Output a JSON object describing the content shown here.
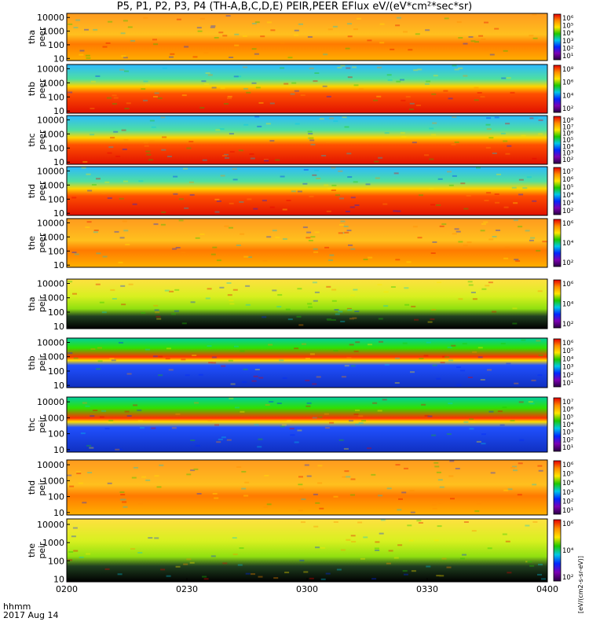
{
  "title": "P5, P1, P2, P3, P4 (TH-A,B,C,D,E) PEIR,PEER EFlux eV/(eV*cm²*sec*sr)",
  "colorbar_label": "[eV/(cm2-s-sr-eV)]",
  "corner_label": {
    "line1": "hhmm",
    "line2": "2017 Aug 14"
  },
  "chart_data": {
    "type": "heatmap",
    "title": "P5, P1, P2, P3, P4 (TH-A,B,C,D,E) PEIR,PEER EFlux eV/(eV*cm²*sec*sr)",
    "x_axis": {
      "ticks": [
        "0200",
        "0230",
        "0300",
        "0330",
        "0400"
      ],
      "unit_label": "hhmm",
      "date": "2017 Aug 14"
    },
    "y_axis": {
      "scale": "log",
      "range": [
        7,
        20000
      ],
      "ticks": [
        "10",
        "100",
        "1000",
        "10000"
      ]
    },
    "colors": {
      "black": "#000000",
      "purple": "#7d00b4",
      "blue": "#0028ff",
      "cyan": "#00c8e6",
      "green": "#1ec800",
      "yellow": "#ffe600",
      "orange": "#ff8c00",
      "red": "#e60000",
      "flag_yellow": "#ffff00",
      "flag_red": "#ff0000"
    },
    "panels": [
      {
        "name": "tha peer",
        "label": [
          "tha",
          "peer"
        ],
        "cb_ticks": [
          "10⁶",
          "10⁵",
          "10⁴",
          "10³",
          "10²",
          "10¹"
        ],
        "dominant": "orange"
      },
      {
        "name": "thb peer",
        "label": [
          "thb",
          "peer"
        ],
        "cb_ticks": [
          "10⁸",
          "10⁶",
          "10⁴",
          "10²"
        ],
        "dominant": "red"
      },
      {
        "name": "thc peer",
        "label": [
          "thc",
          "peer"
        ],
        "cb_ticks": [
          "10⁸",
          "10⁷",
          "10⁶",
          "10⁵",
          "10⁴",
          "10³",
          "10²"
        ],
        "dominant": "red"
      },
      {
        "name": "thd peer",
        "label": [
          "thd",
          "peer"
        ],
        "cb_ticks": [
          "10⁷",
          "10⁶",
          "10⁵",
          "10⁴",
          "10³",
          "10²"
        ],
        "dominant": "red"
      },
      {
        "name": "the peer",
        "label": [
          "the",
          "peer"
        ],
        "cb_ticks": [
          "10⁶",
          "10⁴",
          "10²"
        ],
        "dominant": "orange"
      },
      {
        "name": "tha peir",
        "label": [
          "tha",
          "peir"
        ],
        "cb_ticks": [
          "10⁶",
          "10⁴",
          "10²"
        ],
        "dominant": "yellow"
      },
      {
        "name": "thb peir",
        "label": [
          "thb",
          "peir"
        ],
        "cb_ticks": [
          "10⁶",
          "10⁵",
          "10⁴",
          "10³",
          "10²",
          "10¹"
        ],
        "dominant": "blue"
      },
      {
        "name": "thc peir",
        "label": [
          "thc",
          "peir"
        ],
        "cb_ticks": [
          "10⁷",
          "10⁶",
          "10⁵",
          "10⁴",
          "10³",
          "10²",
          "10¹"
        ],
        "dominant": "blue"
      },
      {
        "name": "thd peir",
        "label": [
          "thd",
          "peir"
        ],
        "cb_ticks": [
          "10⁶",
          "10⁵",
          "10⁴",
          "10³",
          "10²",
          "10¹"
        ],
        "dominant": "orange"
      },
      {
        "name": "the peir",
        "label": [
          "the",
          "peir"
        ],
        "cb_ticks": [
          "10⁶",
          "10⁴",
          "10²"
        ],
        "dominant": "yellow"
      }
    ]
  }
}
